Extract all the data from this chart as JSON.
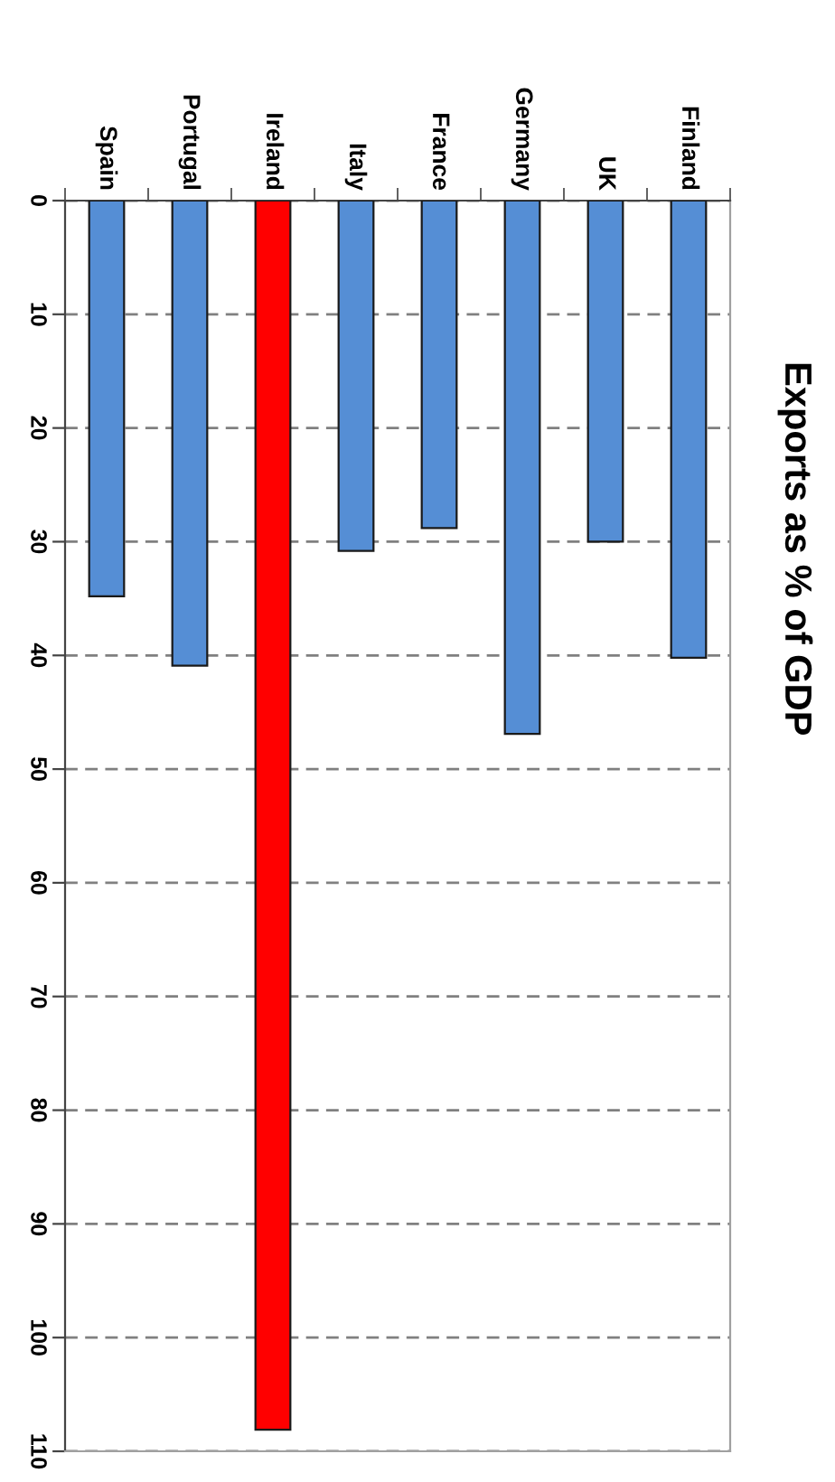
{
  "chart_data": {
    "type": "bar",
    "title": "Exports as % of GDP",
    "categories": [
      "Spain",
      "Portugal",
      "Ireland",
      "Italy",
      "France",
      "Germany",
      "UK",
      "Finland"
    ],
    "values": [
      34.8,
      40.9,
      108.1,
      30.8,
      28.8,
      46.9,
      30.0,
      40.2
    ],
    "colors": [
      "#558ed5",
      "#558ed5",
      "#ff0000",
      "#558ed5",
      "#558ed5",
      "#558ed5",
      "#558ed5",
      "#558ed5"
    ],
    "ylim": [
      110,
      0
    ],
    "yticks": [
      0,
      10,
      20,
      30,
      40,
      50,
      60,
      70,
      80,
      90,
      100,
      110
    ],
    "grid": "y"
  }
}
